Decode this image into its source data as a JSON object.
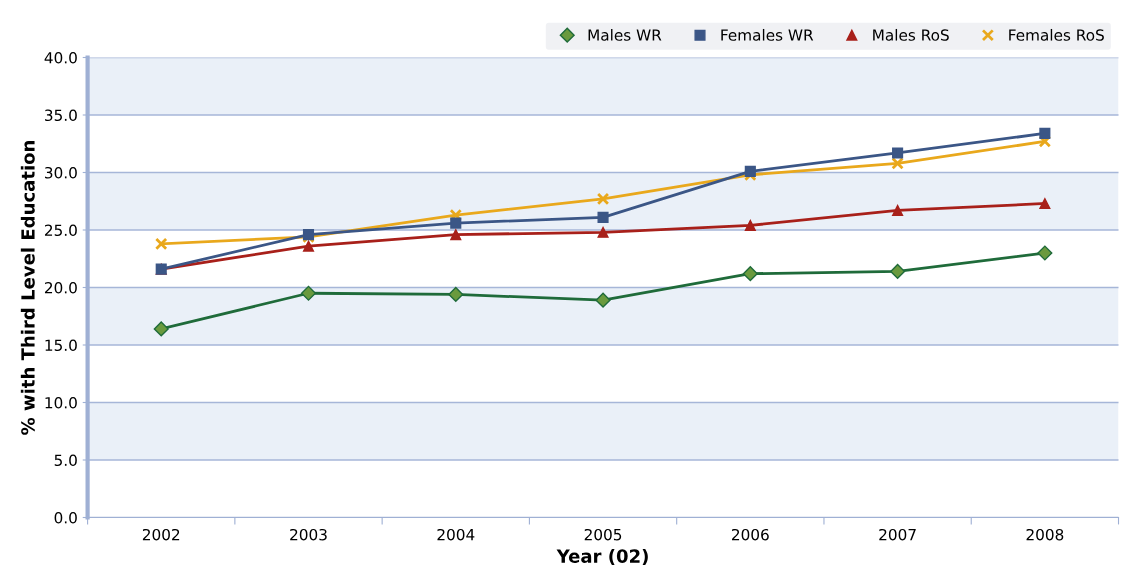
{
  "chart_data": {
    "type": "line",
    "xlabel": "Year (02)",
    "ylabel": "% with Third Level Education",
    "categories": [
      "2002",
      "2003",
      "2004",
      "2005",
      "2006",
      "2007",
      "2008"
    ],
    "series": [
      {
        "name": "Males WR",
        "color": "#1f6b3a",
        "marker": "diamond",
        "values": [
          16.4,
          19.5,
          19.4,
          18.9,
          21.2,
          21.4,
          23.0
        ]
      },
      {
        "name": "Females WR",
        "color": "#3b5686",
        "marker": "square",
        "values": [
          21.6,
          24.6,
          25.6,
          26.1,
          30.1,
          31.7,
          33.4
        ]
      },
      {
        "name": "Males RoS",
        "color": "#a8201a",
        "marker": "triangle",
        "values": [
          21.6,
          23.6,
          24.6,
          24.8,
          25.4,
          26.7,
          27.3
        ]
      },
      {
        "name": "Females RoS",
        "color": "#e9a81c",
        "marker": "cross",
        "values": [
          23.8,
          24.4,
          26.3,
          27.7,
          29.8,
          30.8,
          32.7
        ]
      }
    ],
    "ylim": [
      0,
      40
    ],
    "yticks": [
      {
        "value": 0,
        "label": "0.0"
      },
      {
        "value": 5,
        "label": "5.0"
      },
      {
        "value": 10,
        "label": "10.0"
      },
      {
        "value": 15,
        "label": "15.0"
      },
      {
        "value": 20,
        "label": "20.0"
      },
      {
        "value": 25,
        "label": "25.0"
      },
      {
        "value": 30,
        "label": "30.0"
      },
      {
        "value": 35,
        "label": "35.0"
      },
      {
        "value": 40,
        "label": "40.0"
      }
    ],
    "grid": "y",
    "legend": "top right"
  }
}
